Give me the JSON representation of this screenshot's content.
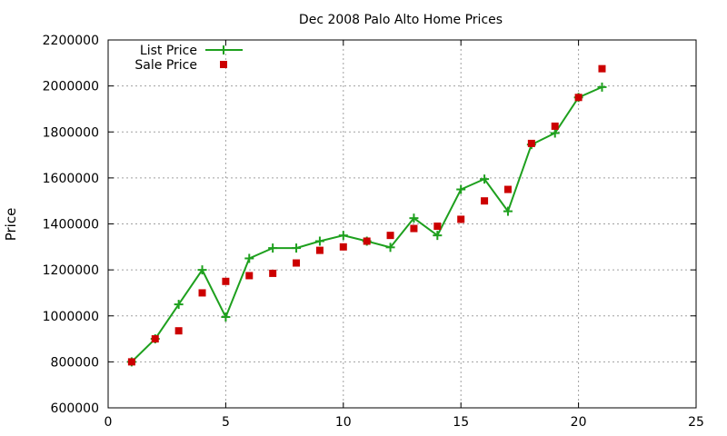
{
  "chart_data": {
    "type": "line",
    "title": "Dec 2008 Palo Alto Home Prices",
    "xlabel": "",
    "ylabel": "Price",
    "xlim": [
      0,
      25
    ],
    "ylim": [
      600000,
      2200000
    ],
    "xticks": [
      0,
      5,
      10,
      15,
      20,
      25
    ],
    "yticks": [
      600000,
      800000,
      1000000,
      1200000,
      1400000,
      1600000,
      1800000,
      2000000,
      2200000
    ],
    "grid": true,
    "legend_position": "top-left",
    "series": [
      {
        "name": "List Price",
        "style": "linespoints",
        "marker": "plus",
        "color": "#1ea01e",
        "x": [
          1,
          2,
          3,
          4,
          5,
          6,
          7,
          8,
          9,
          10,
          11,
          12,
          13,
          14,
          15,
          16,
          17,
          18,
          19,
          20,
          21
        ],
        "y": [
          800000,
          900000,
          1050000,
          1200000,
          995000,
          1250000,
          1295000,
          1295000,
          1325000,
          1350000,
          1325000,
          1298000,
          1425000,
          1350000,
          1550000,
          1595000,
          1455000,
          1745000,
          1795000,
          1950000,
          1995000
        ]
      },
      {
        "name": "Sale Price",
        "style": "points",
        "marker": "square",
        "color": "#cc0000",
        "x": [
          1,
          2,
          3,
          4,
          5,
          6,
          7,
          8,
          9,
          10,
          11,
          12,
          13,
          14,
          15,
          16,
          17,
          18,
          19,
          20,
          21
        ],
        "y": [
          800000,
          900000,
          935000,
          1100000,
          1150000,
          1175000,
          1185000,
          1230000,
          1285000,
          1300000,
          1325000,
          1350000,
          1380000,
          1390000,
          1420000,
          1500000,
          1550000,
          1750000,
          1825000,
          1950000,
          2075000
        ]
      }
    ]
  }
}
